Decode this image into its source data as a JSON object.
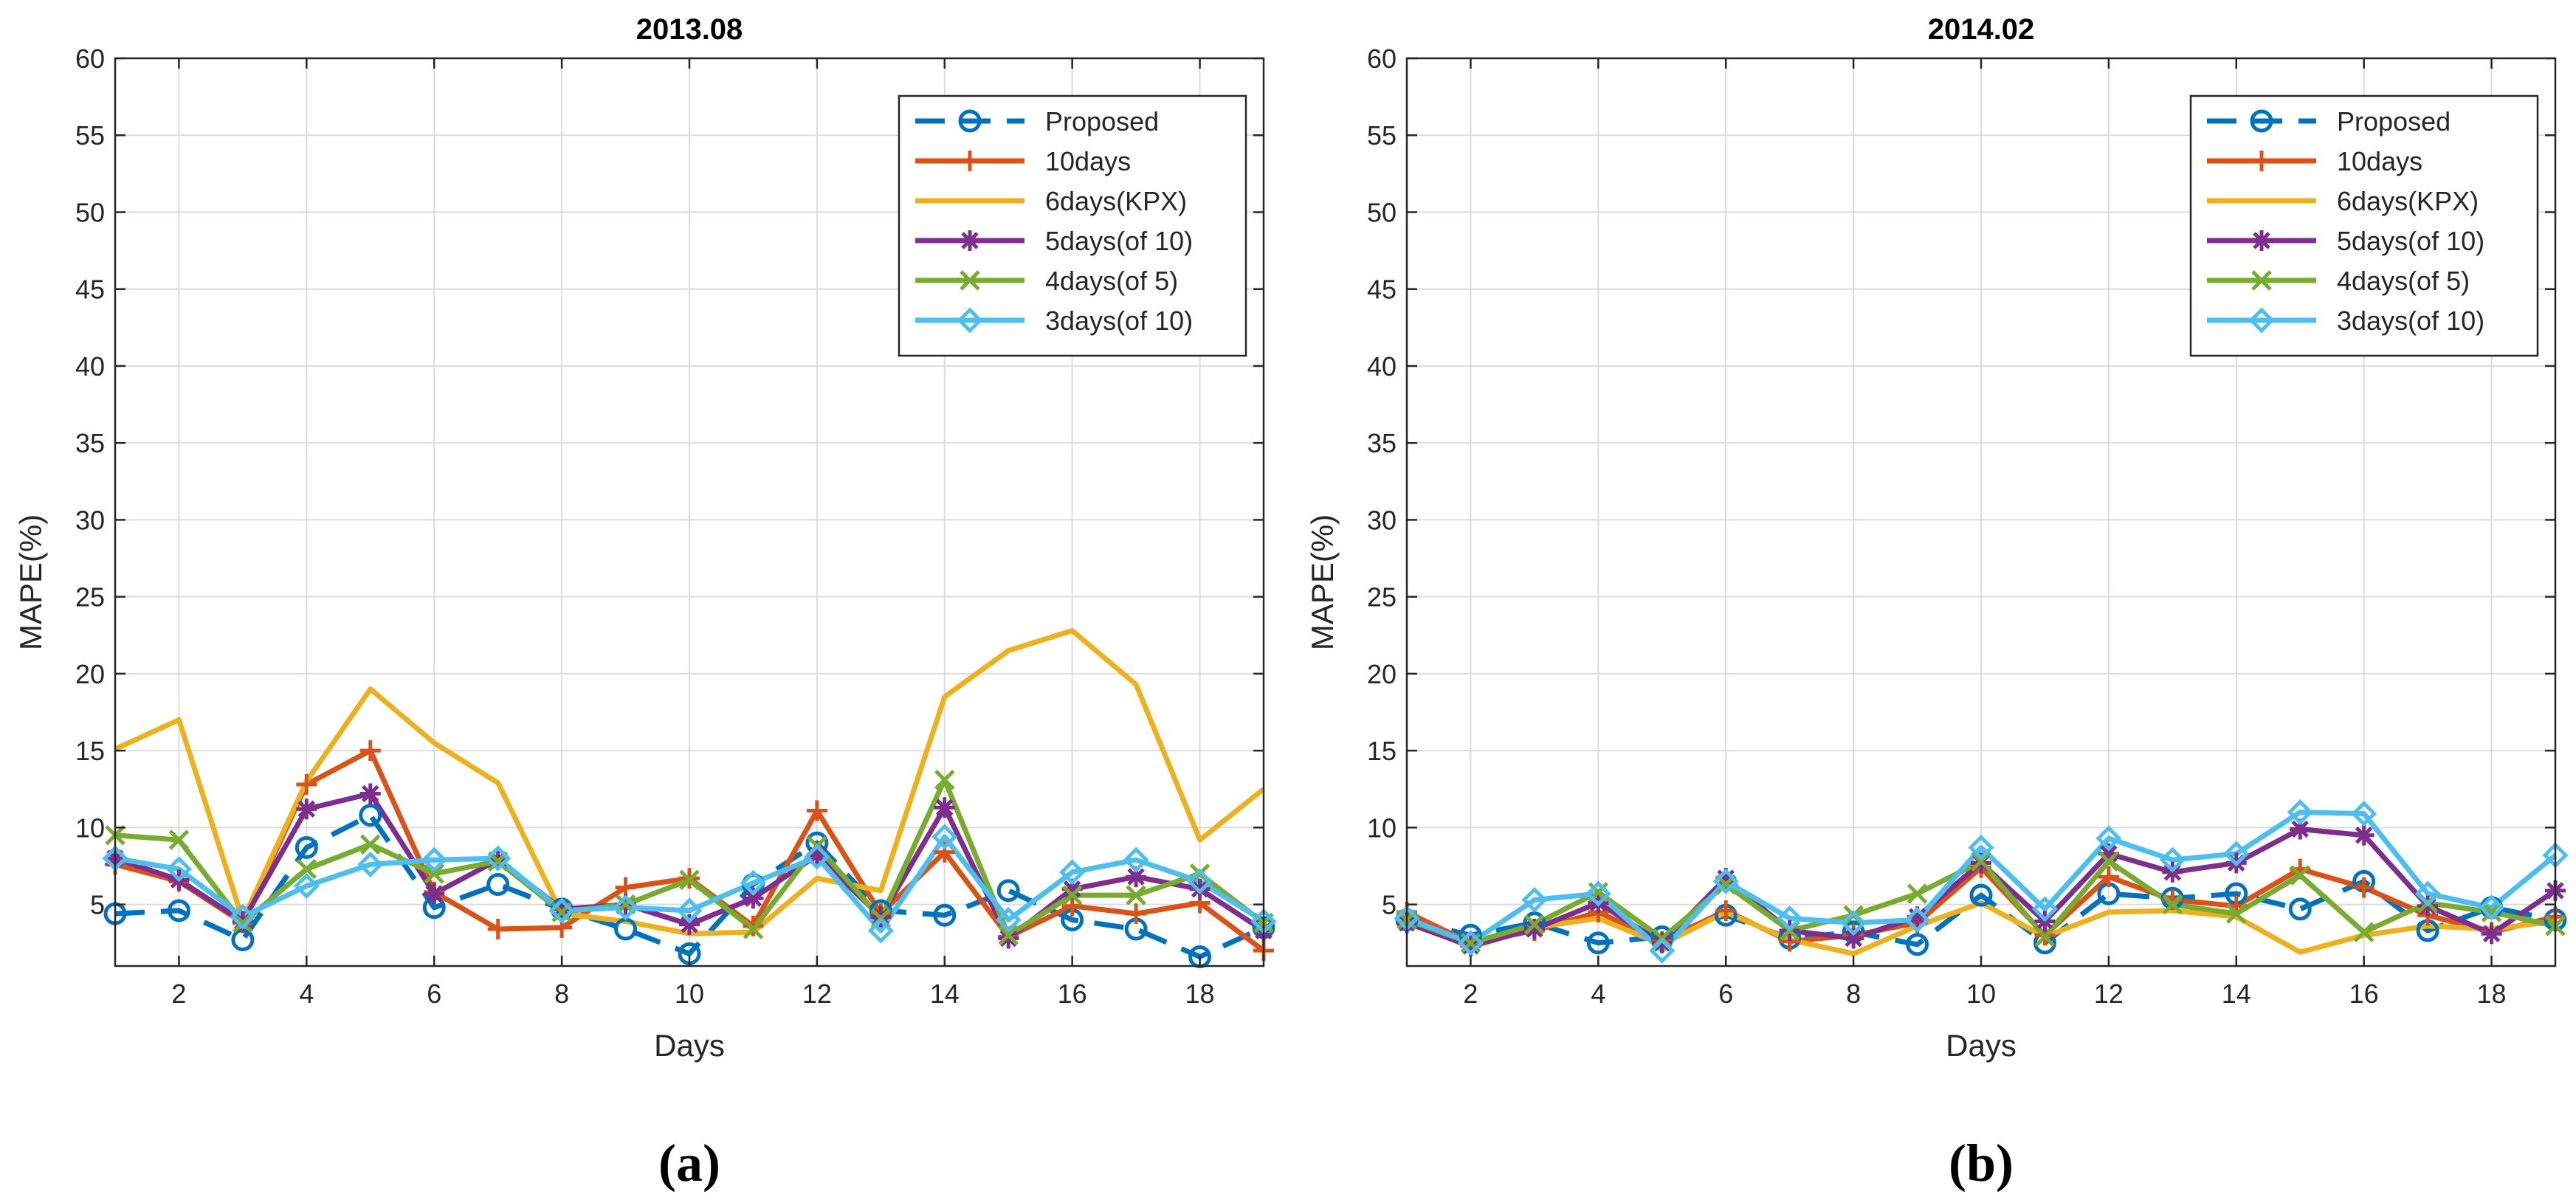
{
  "chart_data": [
    {
      "type": "line",
      "title": "2013.08",
      "caption": "(a)",
      "xlabel": "Days",
      "ylabel": "MAPE(%)",
      "xlim": [
        1,
        19
      ],
      "ylim": [
        1,
        60
      ],
      "x_ticks": [
        2,
        4,
        6,
        8,
        10,
        12,
        14,
        16,
        18
      ],
      "y_ticks": [
        5,
        10,
        15,
        20,
        25,
        30,
        35,
        40,
        45,
        50,
        55,
        60
      ],
      "grid": true,
      "legend_position": "top-right",
      "x": [
        1,
        2,
        3,
        4,
        5,
        6,
        7,
        8,
        9,
        10,
        11,
        12,
        13,
        14,
        15,
        16,
        17,
        18,
        19
      ],
      "series": [
        {
          "name": "Proposed",
          "color": "#0072BD",
          "marker": "circle",
          "dashed": true,
          "values": [
            4.4,
            4.6,
            2.7,
            8.7,
            10.8,
            4.8,
            6.3,
            4.7,
            3.4,
            1.8,
            6.3,
            9.0,
            4.6,
            4.3,
            5.9,
            4.0,
            3.4,
            1.6,
            3.5
          ]
        },
        {
          "name": "10days",
          "color": "#D95319",
          "marker": "plus",
          "dashed": false,
          "values": [
            7.6,
            6.5,
            3.8,
            12.8,
            15.0,
            5.8,
            3.4,
            3.5,
            6.1,
            6.7,
            3.6,
            11.1,
            4.4,
            8.4,
            2.9,
            4.9,
            4.4,
            5.1,
            2.0
          ]
        },
        {
          "name": "6days(KPX)",
          "color": "#EDB120",
          "marker": "none",
          "dashed": false,
          "values": [
            15.1,
            17.0,
            4.0,
            13.0,
            19.0,
            15.5,
            12.9,
            4.4,
            3.9,
            3.1,
            3.2,
            6.7,
            5.9,
            18.5,
            21.5,
            22.8,
            19.3,
            9.2,
            12.5
          ]
        },
        {
          "name": "5days(of 10)",
          "color": "#7E2F8E",
          "marker": "asterisk",
          "dashed": false,
          "values": [
            8.0,
            6.6,
            3.9,
            11.2,
            12.2,
            5.7,
            7.9,
            4.7,
            5.0,
            3.7,
            5.4,
            8.2,
            4.2,
            11.3,
            2.8,
            6.0,
            6.8,
            6.0,
            3.3
          ]
        },
        {
          "name": "4days(of 5)",
          "color": "#77AC30",
          "marker": "x",
          "dashed": false,
          "values": [
            9.5,
            9.2,
            3.8,
            7.3,
            8.9,
            7.0,
            7.8,
            4.5,
            5.0,
            6.6,
            3.4,
            8.8,
            4.1,
            13.1,
            3.0,
            5.6,
            5.6,
            7.0,
            3.8
          ]
        },
        {
          "name": "3days(of 10)",
          "color": "#4DBEEE",
          "marker": "diamond",
          "dashed": false,
          "values": [
            8.0,
            7.3,
            4.2,
            6.2,
            7.6,
            7.9,
            8.0,
            4.6,
            4.8,
            4.6,
            6.4,
            8.1,
            3.3,
            9.4,
            4.0,
            7.1,
            7.9,
            6.5,
            3.9
          ]
        }
      ]
    },
    {
      "type": "line",
      "title": "2014.02",
      "caption": "(b)",
      "xlabel": "Days",
      "ylabel": "MAPE(%)",
      "xlim": [
        1,
        19
      ],
      "ylim": [
        1,
        60
      ],
      "x_ticks": [
        2,
        4,
        6,
        8,
        10,
        12,
        14,
        16,
        18
      ],
      "y_ticks": [
        5,
        10,
        15,
        20,
        25,
        30,
        35,
        40,
        45,
        50,
        55,
        60
      ],
      "grid": true,
      "legend_position": "top-right",
      "x": [
        1,
        2,
        3,
        4,
        5,
        6,
        7,
        8,
        9,
        10,
        11,
        12,
        13,
        14,
        15,
        16,
        17,
        18,
        19
      ],
      "series": [
        {
          "name": "Proposed",
          "color": "#0072BD",
          "marker": "circle",
          "dashed": true,
          "values": [
            4.0,
            3.0,
            3.8,
            2.5,
            2.9,
            4.3,
            2.8,
            3.2,
            2.4,
            5.6,
            2.5,
            5.7,
            5.4,
            5.7,
            4.7,
            6.5,
            3.3,
            4.8,
            4.0
          ]
        },
        {
          "name": "10days",
          "color": "#D95319",
          "marker": "plus",
          "dashed": false,
          "values": [
            4.5,
            2.5,
            3.3,
            4.5,
            2.6,
            4.6,
            2.6,
            3.0,
            3.8,
            7.4,
            3.0,
            6.8,
            5.3,
            4.9,
            7.3,
            6.1,
            4.3,
            3.2,
            4.2
          ]
        },
        {
          "name": "6days(KPX)",
          "color": "#EDB120",
          "marker": "none",
          "dashed": false,
          "values": [
            4.0,
            2.2,
            3.5,
            4.1,
            2.4,
            4.5,
            2.7,
            1.8,
            3.6,
            5.1,
            2.9,
            4.5,
            4.6,
            4.2,
            1.9,
            3.0,
            3.6,
            3.4,
            3.9
          ]
        },
        {
          "name": "5days(of 10)",
          "color": "#7E2F8E",
          "marker": "asterisk",
          "dashed": false,
          "values": [
            3.8,
            2.3,
            3.4,
            5.1,
            2.5,
            6.7,
            3.3,
            2.8,
            4.2,
            7.7,
            3.9,
            8.3,
            7.1,
            7.7,
            9.9,
            9.5,
            4.9,
            3.1,
            5.9
          ]
        },
        {
          "name": "4days(of 5)",
          "color": "#77AC30",
          "marker": "x",
          "dashed": false,
          "values": [
            4.0,
            2.5,
            3.7,
            5.8,
            2.8,
            6.3,
            3.3,
            4.3,
            5.7,
            7.8,
            2.9,
            7.8,
            5.0,
            4.4,
            6.9,
            3.2,
            5.1,
            4.5,
            3.6
          ]
        },
        {
          "name": "3days(of 10)",
          "color": "#4DBEEE",
          "marker": "diamond",
          "dashed": false,
          "values": [
            4.1,
            2.5,
            5.3,
            5.7,
            2.0,
            6.5,
            4.1,
            3.8,
            4.0,
            8.7,
            4.7,
            9.3,
            7.9,
            8.3,
            11.0,
            10.9,
            5.7,
            4.8,
            8.2
          ]
        }
      ]
    }
  ]
}
